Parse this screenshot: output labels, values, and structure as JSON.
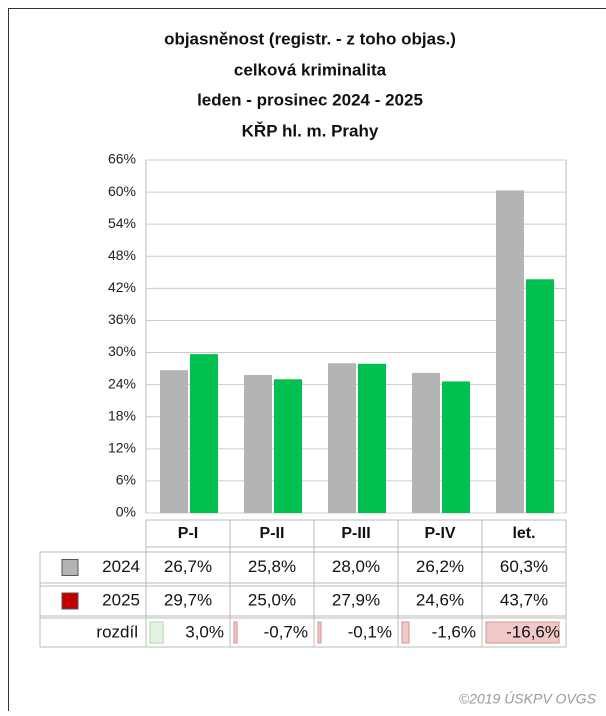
{
  "chart_data": {
    "type": "bar",
    "title": [
      "objasněnost (registr. - z toho objas.)",
      "celková kriminalita",
      "leden - prosinec 2024 - 2025",
      "KŘP hl. m. Prahy"
    ],
    "categories": [
      "P-I",
      "P-II",
      "P-III",
      "P-IV",
      "let."
    ],
    "series": [
      {
        "name": "2024",
        "color": "#b4b4b4",
        "legend_color": "#b4b4b4",
        "values": [
          26.7,
          25.8,
          28.0,
          26.2,
          60.3
        ],
        "value_labels": [
          "26,7%",
          "25,8%",
          "28,0%",
          "26,2%",
          "60,3%"
        ]
      },
      {
        "name": "2025",
        "color": "#00c050",
        "legend_color": "#c00000",
        "values": [
          29.7,
          25.0,
          27.9,
          24.6,
          43.7
        ],
        "value_labels": [
          "29,7%",
          "25,0%",
          "27,9%",
          "24,6%",
          "43,7%"
        ]
      }
    ],
    "difference": {
      "name": "rozdíl",
      "values": [
        3.0,
        -0.7,
        -0.1,
        -1.6,
        -16.6
      ],
      "value_labels": [
        "3,0%",
        "-0,7%",
        "-0,1%",
        "-1,6%",
        "-16,6%"
      ]
    },
    "ylim": [
      0,
      66
    ],
    "yticks": [
      {
        "value": 0,
        "label": "0%"
      },
      {
        "value": 6,
        "label": "6%"
      },
      {
        "value": 12,
        "label": "12%"
      },
      {
        "value": 18,
        "label": "18%"
      },
      {
        "value": 24,
        "label": "24%"
      },
      {
        "value": 30,
        "label": "30%"
      },
      {
        "value": 36,
        "label": "36%"
      },
      {
        "value": 42,
        "label": "42%"
      },
      {
        "value": 48,
        "label": "48%"
      },
      {
        "value": 54,
        "label": "54%"
      },
      {
        "value": 60,
        "label": "60%"
      },
      {
        "value": 66,
        "label": "66%"
      }
    ],
    "grid": true,
    "footer": "©2019 ÚSKPV OVGS"
  }
}
